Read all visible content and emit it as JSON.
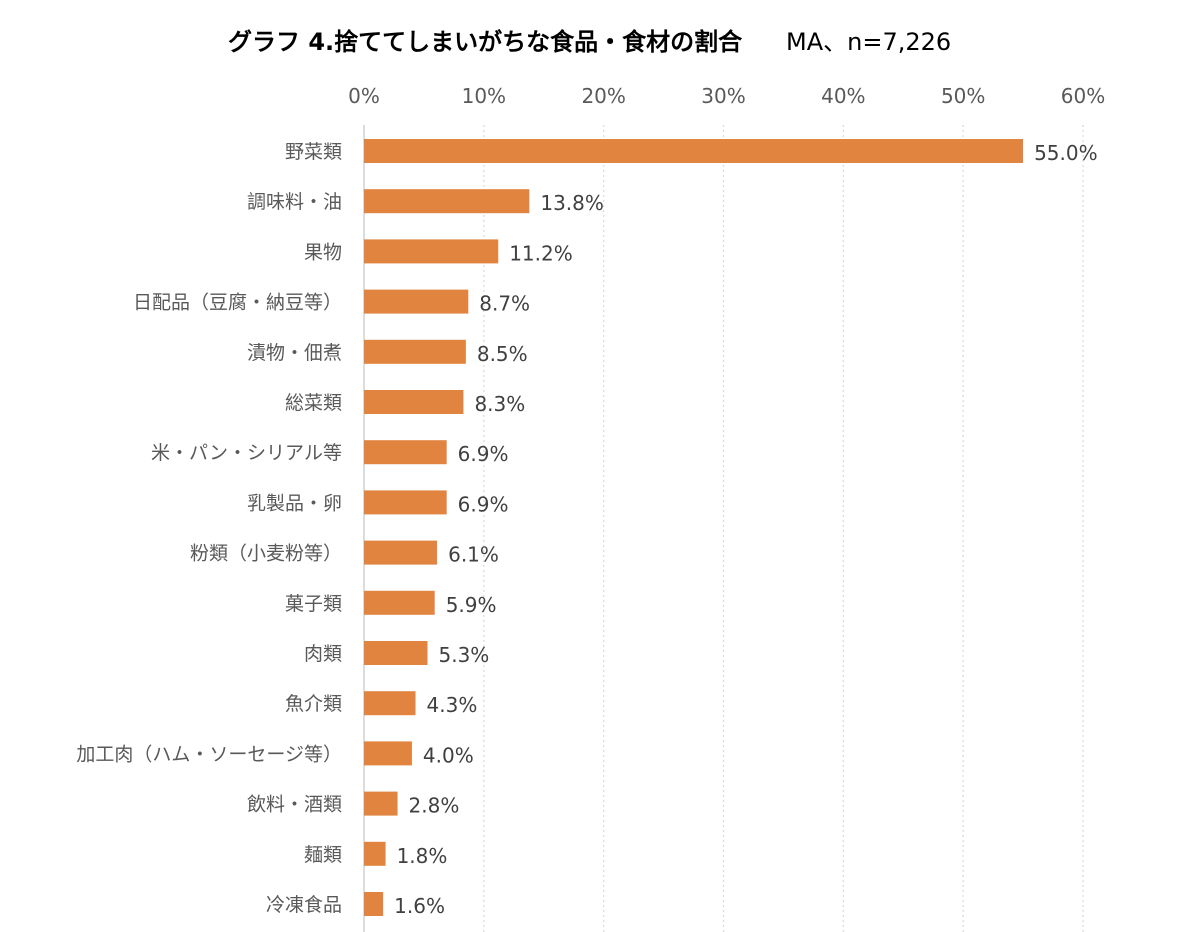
{
  "chart_data": {
    "type": "bar",
    "orientation": "horizontal",
    "title": "グラフ 4.捨ててしまいがちな食品・食材の割合",
    "subtitle": "MA、n=7,226",
    "xlabel": "",
    "ylabel": "",
    "xlim": [
      0,
      60
    ],
    "ticks": [
      {
        "value": 0,
        "label": "0%"
      },
      {
        "value": 10,
        "label": "10%"
      },
      {
        "value": 20,
        "label": "20%"
      },
      {
        "value": 30,
        "label": "30%"
      },
      {
        "value": 40,
        "label": "40%"
      },
      {
        "value": 50,
        "label": "50%"
      },
      {
        "value": 60,
        "label": "60%"
      }
    ],
    "tick_position": "top",
    "grid": true,
    "legend": false,
    "bar_color": "#E0843F",
    "grid_color": "#D9D9D9",
    "categories": [
      "野菜類",
      "調味料・油",
      "果物",
      "日配品（豆腐・納豆等）",
      "漬物・佃煮",
      "総菜類",
      "米・パン・シリアル等",
      "乳製品・卵",
      "粉類（小麦粉等）",
      "菓子類",
      "肉類",
      "魚介類",
      "加工肉（ハム・ソーセージ等）",
      "飲料・酒類",
      "麺類",
      "冷凍食品"
    ],
    "values": [
      55.0,
      13.8,
      11.2,
      8.7,
      8.5,
      8.3,
      6.9,
      6.9,
      6.1,
      5.9,
      5.3,
      4.3,
      4.0,
      2.8,
      1.8,
      1.6
    ],
    "data_labels": [
      "55.0%",
      "13.8%",
      "11.2%",
      "8.7%",
      "8.5%",
      "8.3%",
      "6.9%",
      "6.9%",
      "6.1%",
      "5.9%",
      "5.3%",
      "4.3%",
      "4.0%",
      "2.8%",
      "1.8%",
      "1.6%"
    ]
  }
}
